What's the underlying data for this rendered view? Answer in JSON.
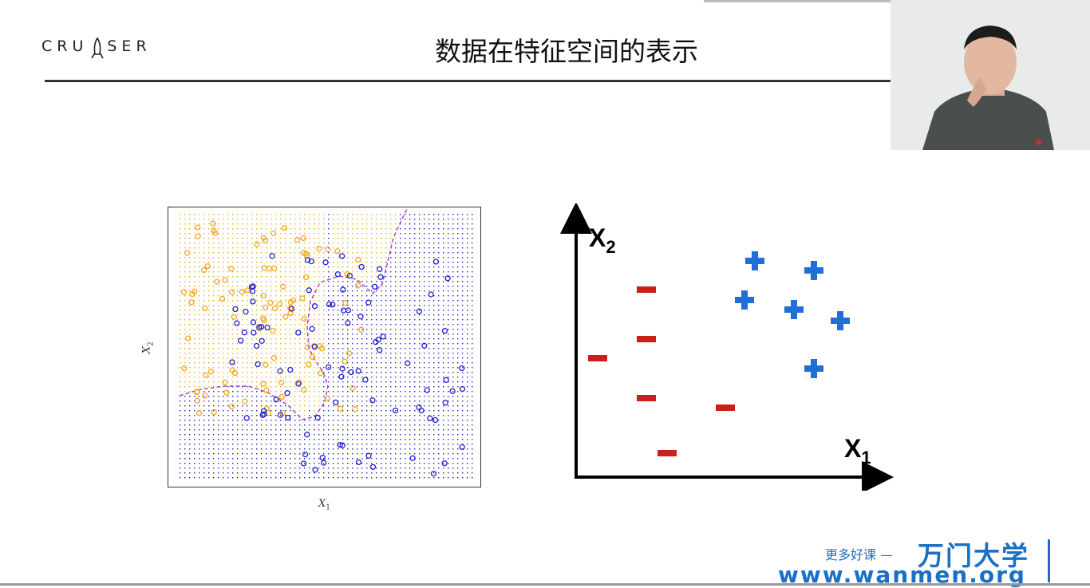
{
  "slide": {
    "title": "数据在特征空间的表示",
    "logo_text_left": "CRU",
    "logo_text_right": "SER"
  },
  "left_plot": {
    "xlabel": "X",
    "xlabel_sub": "1",
    "ylabel": "X",
    "ylabel_sub": "2",
    "colors": {
      "class_a": "#f0a820",
      "class_b": "#2020c8",
      "boundary": "#a040c0"
    }
  },
  "right_plot": {
    "xlabel": "X",
    "xlabel_sub": "1",
    "ylabel": "X",
    "ylabel_sub": "2",
    "negative_symbol": "minus",
    "positive_symbol": "plus",
    "colors": {
      "negative": "#cc1f1a",
      "positive": "#1f6fd8"
    }
  },
  "watermark": {
    "subtitle": "更多好课 —",
    "brand": "万门大学",
    "url": "www.wanmen.org"
  }
}
